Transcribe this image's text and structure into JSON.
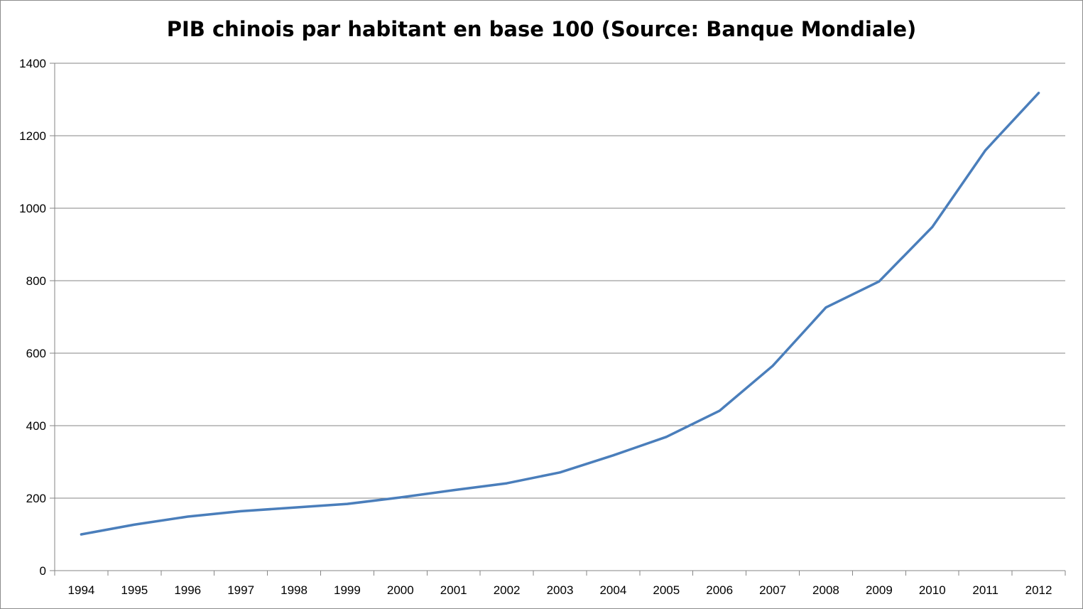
{
  "chart_data": {
    "type": "line",
    "title": "PIB chinois par habitant en base 100 (Source: Banque Mondiale)",
    "xlabel": "",
    "ylabel": "",
    "ylim": [
      0,
      1400
    ],
    "yticks": [
      0,
      200,
      400,
      600,
      800,
      1000,
      1200,
      1400
    ],
    "ytick_labels": [
      "0",
      "200",
      "400",
      "600",
      "800",
      "1000",
      "1200",
      "1400"
    ],
    "categories": [
      "1994",
      "1995",
      "1996",
      "1997",
      "1998",
      "1999",
      "2000",
      "2001",
      "2002",
      "2003",
      "2004",
      "2005",
      "2006",
      "2007",
      "2008",
      "2009",
      "2010",
      "2011",
      "2012"
    ],
    "grid": true,
    "legend": "none",
    "series": [
      {
        "color": "#4a7ebb",
        "values": [
          100,
          127,
          149,
          164,
          174,
          184,
          202,
          222,
          241,
          271,
          318,
          369,
          441,
          565,
          726,
          798,
          948,
          1160,
          1318
        ]
      }
    ]
  }
}
